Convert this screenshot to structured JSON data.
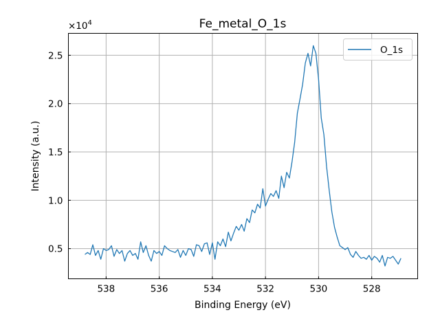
{
  "chart_data": {
    "type": "line",
    "title": "Fe_metal_O_1s",
    "xlabel": "Binding Energy (eV)",
    "ylabel": "Intensity (a.u.)",
    "y_offset_label": "×10",
    "y_offset_exponent": "4",
    "xlim": [
      539.42,
      526.27
    ],
    "ylim": [
      1880,
      27270
    ],
    "x_reversed": true,
    "grid": true,
    "legend_position": "top-right",
    "xticks": [
      538,
      536,
      534,
      532,
      530,
      528
    ],
    "xtick_labels": [
      "538",
      "536",
      "534",
      "532",
      "530",
      "528"
    ],
    "yticks": [
      5000,
      10000,
      15000,
      20000,
      25000
    ],
    "ytick_labels": [
      "0.5",
      "1.0",
      "1.5",
      "2.0",
      "2.5"
    ],
    "color": "#1f77b4",
    "series": [
      {
        "name": "O_1s",
        "x_start": 538.8,
        "x_step": -0.1,
        "values": [
          4400,
          4600,
          4400,
          5400,
          4300,
          4800,
          3900,
          5000,
          4800,
          4900,
          5300,
          4200,
          4900,
          4500,
          4800,
          3700,
          4500,
          4800,
          4300,
          4500,
          3900,
          5700,
          4600,
          5300,
          4300,
          3700,
          4800,
          4500,
          4700,
          4300,
          5300,
          5000,
          4800,
          4700,
          4600,
          4900,
          4100,
          4800,
          4300,
          5000,
          4900,
          4200,
          5400,
          5300,
          4700,
          5500,
          5600,
          4400,
          5600,
          3900,
          5700,
          5300,
          6000,
          5200,
          6700,
          5800,
          6600,
          7300,
          6900,
          7500,
          6800,
          8100,
          7700,
          9000,
          8700,
          9600,
          9200,
          11200,
          9400,
          10100,
          10700,
          10400,
          11000,
          10200,
          12500,
          11300,
          12900,
          12300,
          14000,
          16000,
          19000,
          20500,
          22000,
          24200,
          25200,
          23900,
          26000,
          25200,
          22500,
          18500,
          16800,
          13500,
          11000,
          8800,
          7200,
          6200,
          5300,
          5100,
          4900,
          5100,
          4400,
          4100,
          4700,
          4300,
          4000,
          4100,
          3900,
          4300,
          3800,
          4200,
          4000,
          3600,
          4300,
          3200,
          4100,
          4000,
          4200,
          3800,
          3400,
          4000
        ]
      }
    ]
  }
}
